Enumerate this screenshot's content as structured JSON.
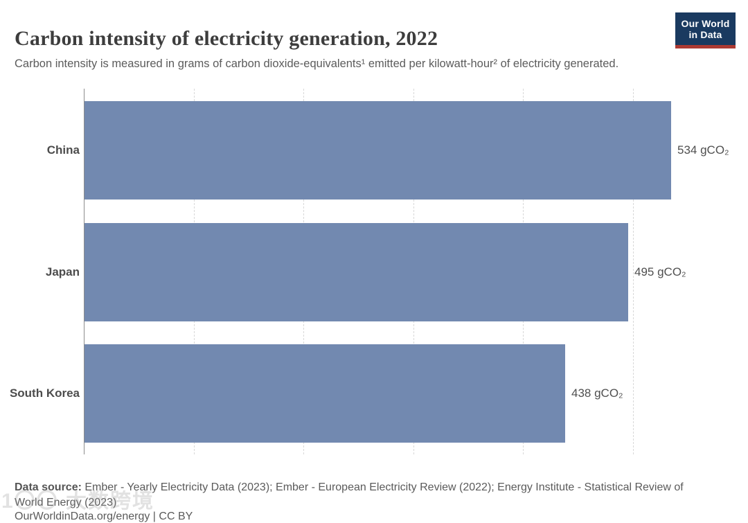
{
  "header": {
    "title": "Carbon intensity of electricity generation, 2022",
    "subtitle": "Carbon intensity is measured in grams of carbon dioxide-equivalents¹ emitted per kilowatt-hour² of electricity generated.",
    "logo": {
      "line1": "Our World",
      "line2": "in Data",
      "bg_color": "#1a3a60",
      "accent_color": "#ad3a32"
    }
  },
  "chart_data": {
    "type": "bar",
    "orientation": "horizontal",
    "title": "Carbon intensity of electricity generation, 2022",
    "categories": [
      "China",
      "Japan",
      "South Korea"
    ],
    "values": [
      534,
      495,
      438
    ],
    "value_labels": [
      "534 gCO₂",
      "495 gCO₂",
      "438 gCO₂"
    ],
    "unit": "gCO₂ per kWh",
    "xlim": [
      0,
      591
    ],
    "gridlines": [
      100,
      200,
      300,
      400,
      500
    ],
    "grid_style": "dashed-vertical",
    "axis_line": "left-solid",
    "tick_labels_shown": false,
    "legend": "none",
    "bar_color": "#7289b0"
  },
  "footer": {
    "source_label": "Data source:",
    "source_text": " Ember - Yearly Electricity Data (2023); Ember - European Electricity Review (2022); Energy Institute - Statistical Review of World Energy (2023)",
    "license_line": "OurWorldinData.org/energy | CC BY"
  },
  "watermark": {
    "text": "1〇〇 大数跨境"
  }
}
